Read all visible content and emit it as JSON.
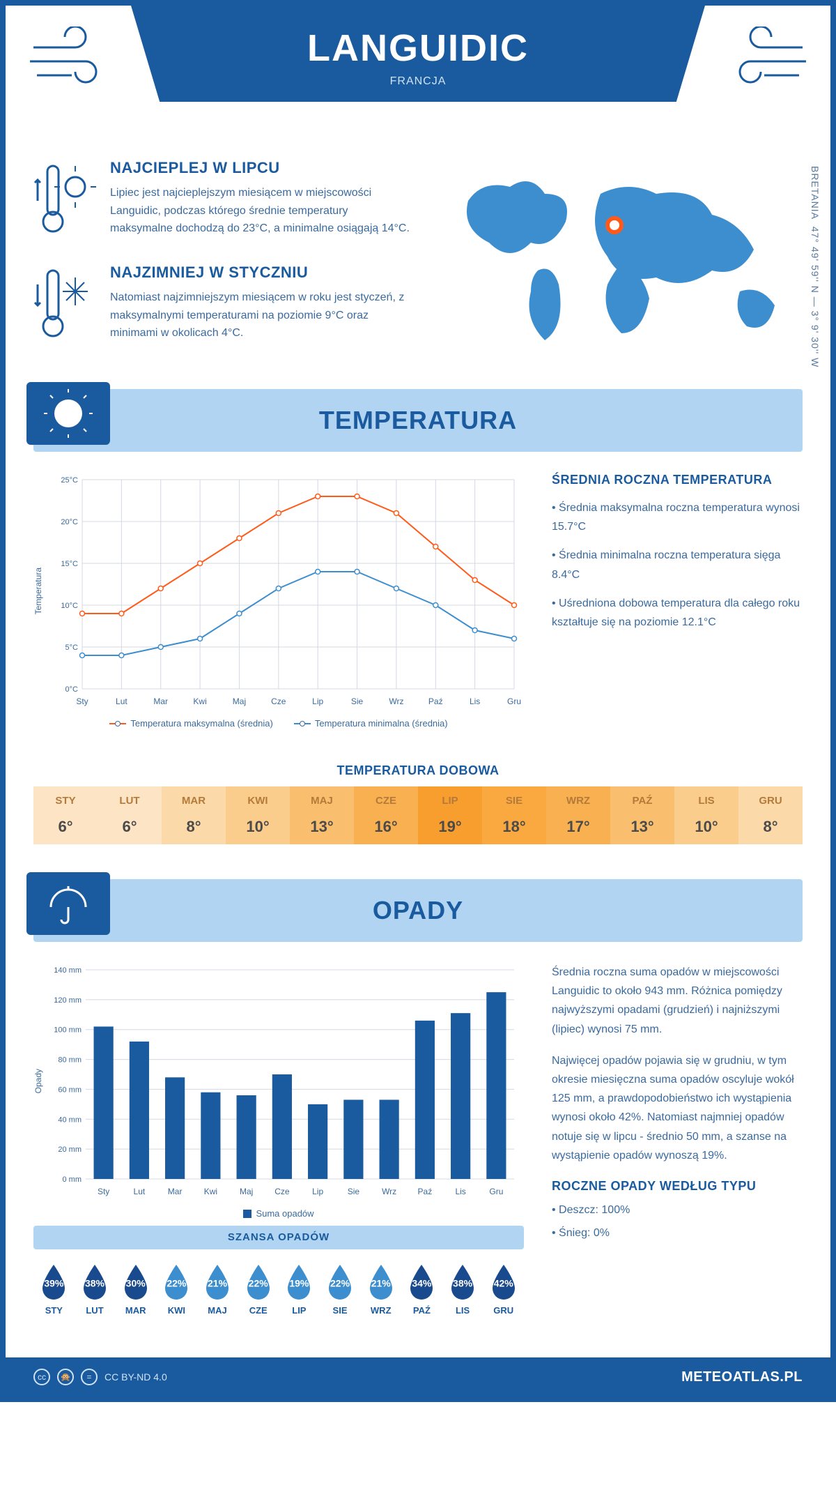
{
  "header": {
    "title": "LANGUIDIC",
    "country": "FRANCJA"
  },
  "map": {
    "region": "BRETANIA",
    "coords": "47° 49' 59'' N — 3° 9' 30'' W",
    "marker_color": "#ff5a1a",
    "land_color": "#3d8ecf"
  },
  "warm": {
    "title": "NAJCIEPLEJ W LIPCU",
    "text": "Lipiec jest najcieplejszym miesiącem w miejscowości Languidic, podczas którego średnie temperatury maksymalne dochodzą do 23°C, a minimalne osiągają 14°C."
  },
  "cold": {
    "title": "NAJZIMNIEJ W STYCZNIU",
    "text": "Natomiast najzimniejszym miesiącem w roku jest styczeń, z maksymalnymi temperaturami na poziomie 9°C oraz minimami w okolicach 4°C."
  },
  "temp_section": {
    "title": "TEMPERATURA"
  },
  "temp_chart": {
    "type": "line",
    "months": [
      "Sty",
      "Lut",
      "Mar",
      "Kwi",
      "Maj",
      "Cze",
      "Lip",
      "Sie",
      "Wrz",
      "Paź",
      "Lis",
      "Gru"
    ],
    "series_max": {
      "label": "Temperatura maksymalna (średnia)",
      "color": "#ff5a1a",
      "values": [
        9,
        9,
        12,
        15,
        18,
        21,
        23,
        23,
        21,
        17,
        13,
        10
      ]
    },
    "series_min": {
      "label": "Temperatura minimalna (średnia)",
      "color": "#3d8ecf",
      "values": [
        4,
        4,
        5,
        6,
        9,
        12,
        14,
        14,
        12,
        10,
        7,
        6
      ]
    },
    "ylabel": "Temperatura",
    "ylim": [
      0,
      25
    ],
    "ytick_step": 5,
    "ytick_suffix": "°C",
    "grid_color": "#d4d8e4",
    "background": "#ffffff",
    "line_width": 2,
    "marker": "circle",
    "marker_size": 5,
    "label_fontsize": 12
  },
  "temp_side": {
    "title": "ŚREDNIA ROCZNA TEMPERATURA",
    "bullets": [
      "Średnia maksymalna roczna temperatura wynosi 15.7°C",
      "Średnia minimalna roczna temperatura sięga 8.4°C",
      "Uśredniona dobowa temperatura dla całego roku kształtuje się na poziomie 12.1°C"
    ]
  },
  "daily": {
    "title": "TEMPERATURA DOBOWA",
    "months": [
      "STY",
      "LUT",
      "MAR",
      "KWI",
      "MAJ",
      "CZE",
      "LIP",
      "SIE",
      "WRZ",
      "PAŹ",
      "LIS",
      "GRU"
    ],
    "values": [
      "6°",
      "6°",
      "8°",
      "10°",
      "13°",
      "16°",
      "19°",
      "18°",
      "17°",
      "13°",
      "10°",
      "8°"
    ],
    "cell_colors": [
      "#fce4c4",
      "#fce4c4",
      "#fcd9a8",
      "#fbcd8c",
      "#fabf6e",
      "#f9b050",
      "#f89e2e",
      "#f9a940",
      "#f9b050",
      "#fabf6e",
      "#fbcd8c",
      "#fcd9a8"
    ]
  },
  "rain_section": {
    "title": "OPADY"
  },
  "rain_chart": {
    "type": "bar",
    "months": [
      "Sty",
      "Lut",
      "Mar",
      "Kwi",
      "Maj",
      "Cze",
      "Lip",
      "Sie",
      "Wrz",
      "Paź",
      "Lis",
      "Gru"
    ],
    "values": [
      102,
      92,
      68,
      58,
      56,
      70,
      50,
      53,
      53,
      106,
      111,
      125
    ],
    "bar_color": "#1a5a9e",
    "ylabel": "Opady",
    "ylim": [
      0,
      140
    ],
    "ytick_step": 20,
    "ytick_suffix": " mm",
    "grid_color": "#d4d8e4",
    "bar_width": 0.55,
    "legend_label": "Suma opadów",
    "label_fontsize": 12
  },
  "rain_side": {
    "p1": "Średnia roczna suma opadów w miejscowości Languidic to około 943 mm. Różnica pomiędzy najwyższymi opadami (grudzień) i najniższymi (lipiec) wynosi 75 mm.",
    "p2": "Najwięcej opadów pojawia się w grudniu, w tym okresie miesięczna suma opadów oscyluje wokół 125 mm, a prawdopodobieństwo ich wystąpienia wynosi około 42%. Natomiast najmniej opadów notuje się w lipcu - średnio 50 mm, a szanse na wystąpienie opadów wynoszą 19%.",
    "type_title": "ROCZNE OPADY WEDŁUG TYPU",
    "types": [
      "Deszcz: 100%",
      "Śnieg: 0%"
    ]
  },
  "chance": {
    "title": "SZANSA OPADÓW",
    "months": [
      "STY",
      "LUT",
      "MAR",
      "KWI",
      "MAJ",
      "CZE",
      "LIP",
      "SIE",
      "WRZ",
      "PAŹ",
      "LIS",
      "GRU"
    ],
    "values": [
      39,
      38,
      30,
      22,
      21,
      22,
      19,
      22,
      21,
      34,
      38,
      42
    ],
    "dark_color": "#1a4a8e",
    "light_color": "#3d8ecf"
  },
  "footer": {
    "license": "CC BY-ND 4.0",
    "site": "METEOATLAS.PL"
  },
  "colors": {
    "primary": "#1a5a9e",
    "light_blue": "#b0d4f1",
    "text": "#3a6a9e"
  }
}
